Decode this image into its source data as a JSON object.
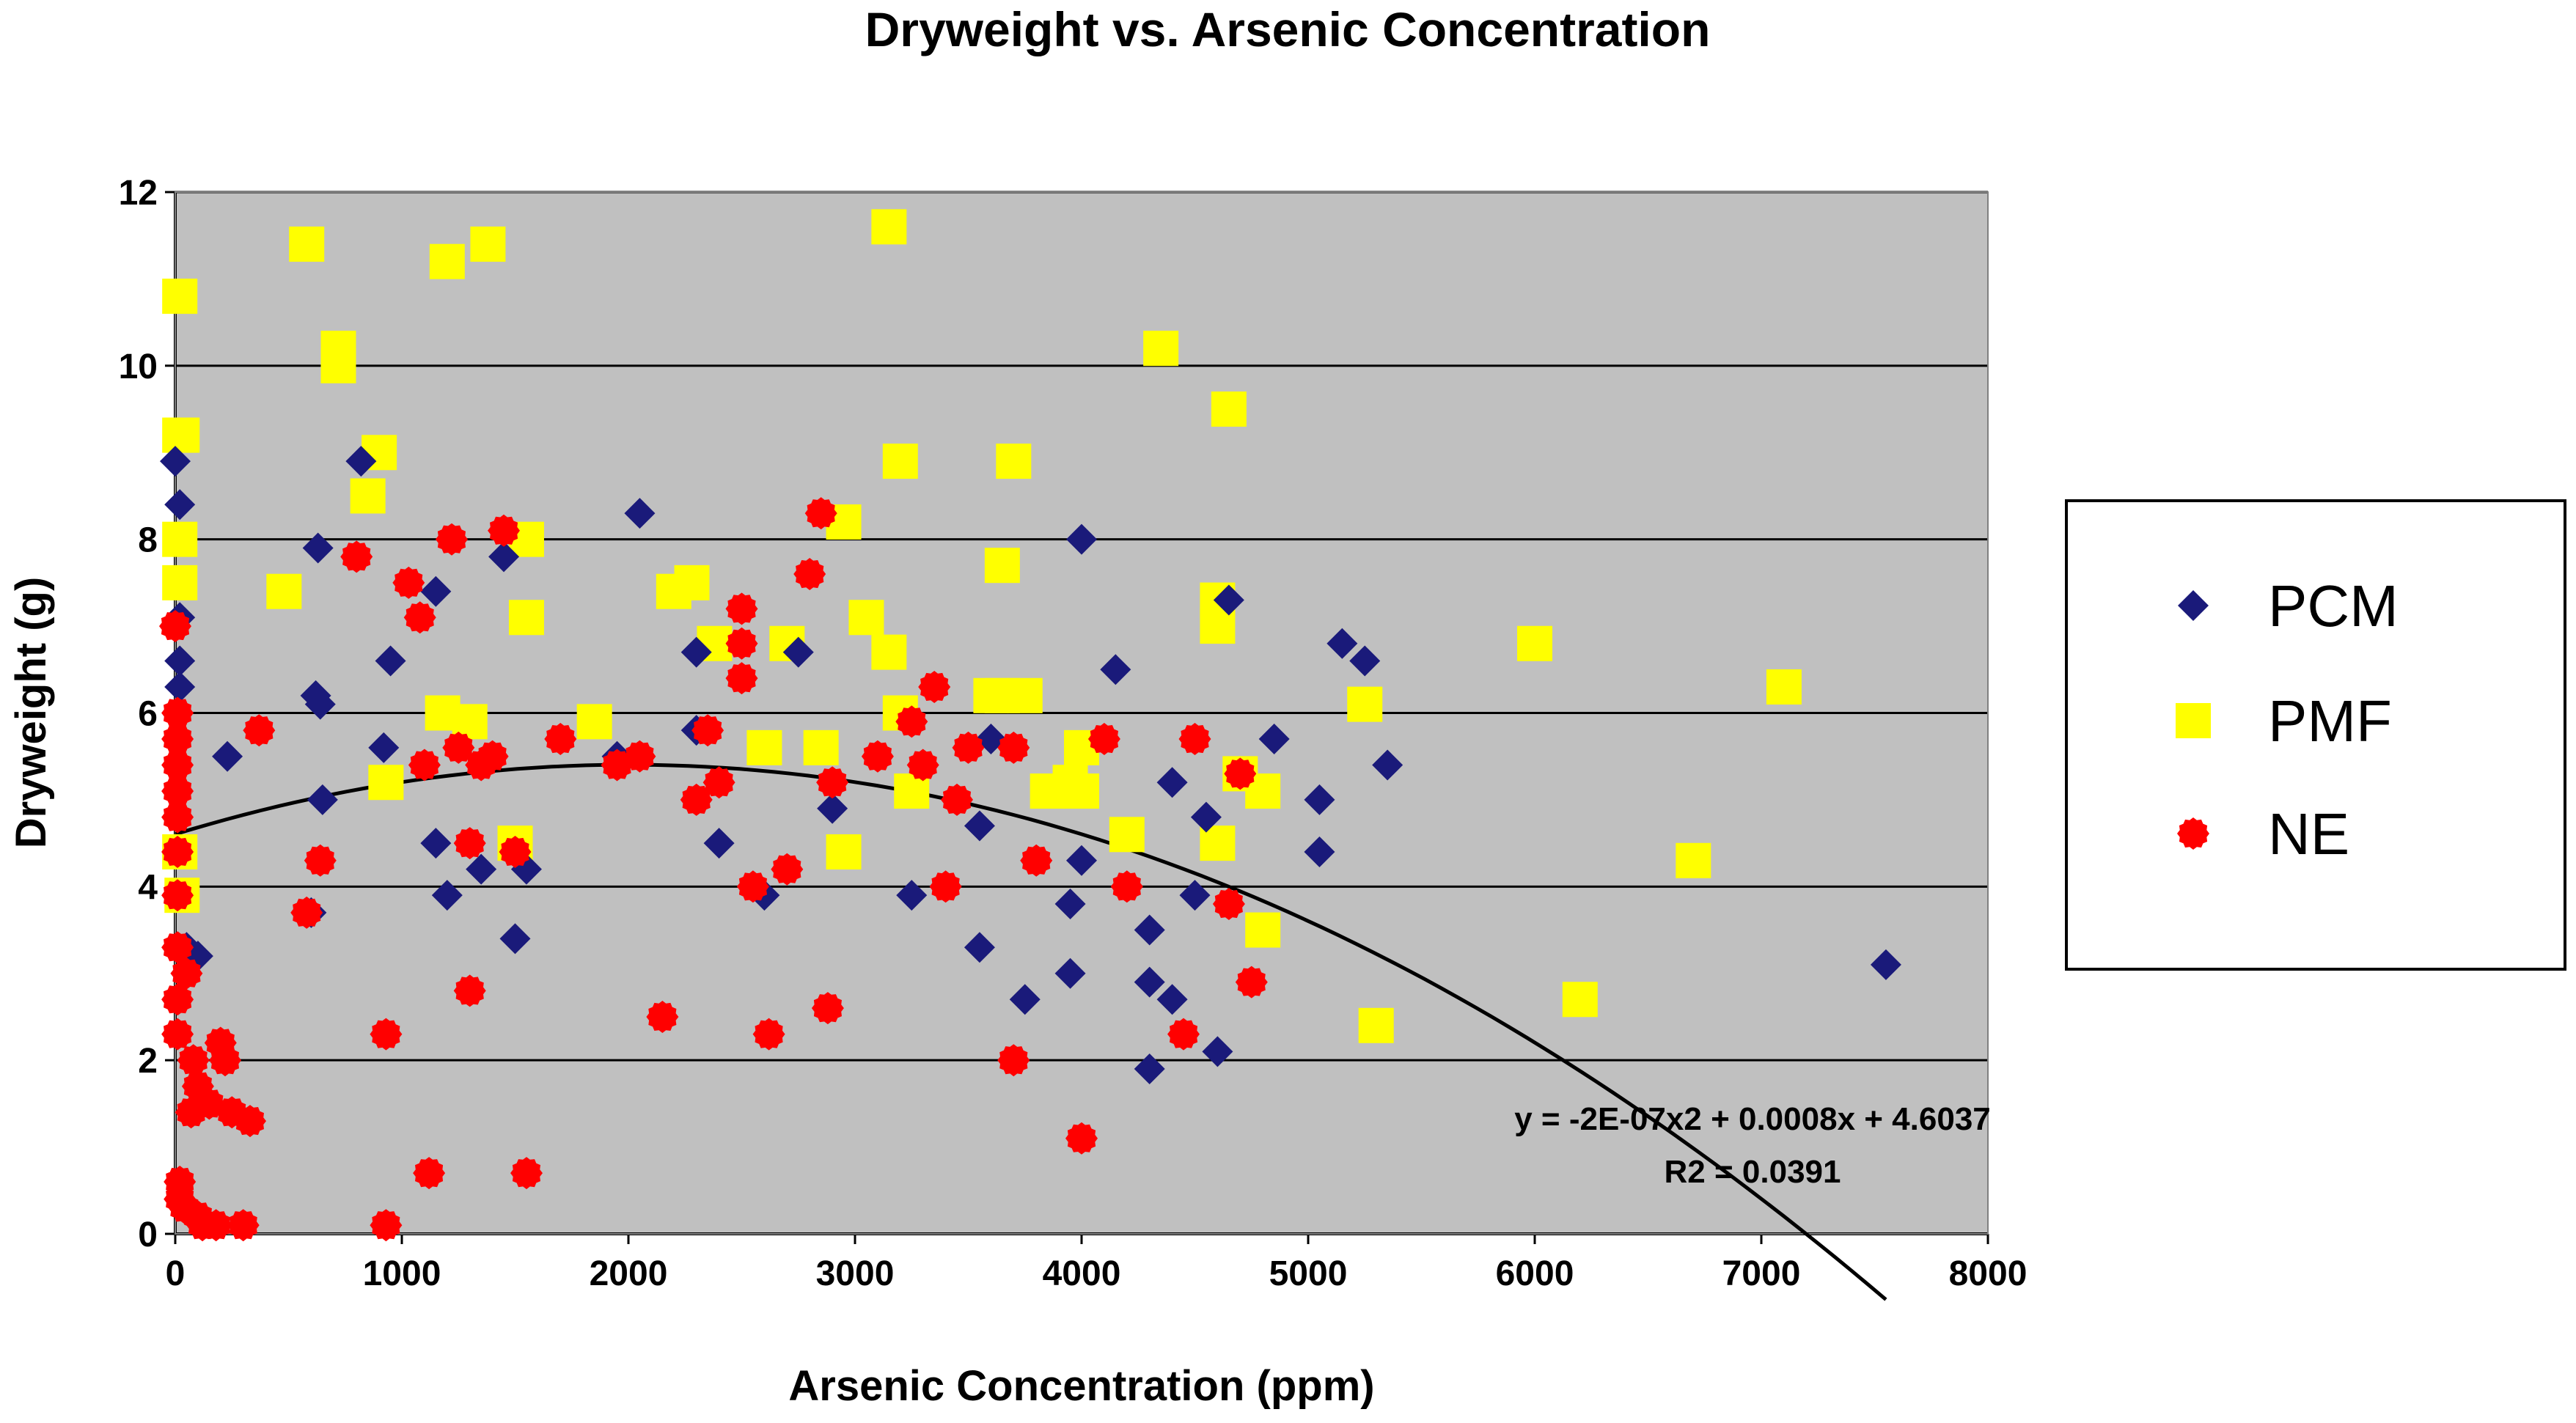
{
  "chart_data": {
    "type": "scatter",
    "title": "Dryweight vs. Arsenic Concentration",
    "xlabel": "Arsenic Concentration (ppm)",
    "ylabel": "Dryweight (g)",
    "xlim": [
      0,
      8000
    ],
    "ylim": [
      0,
      12
    ],
    "xticks": [
      0,
      1000,
      2000,
      3000,
      4000,
      5000,
      6000,
      7000,
      8000
    ],
    "yticks": [
      0,
      2,
      4,
      6,
      8,
      10,
      12
    ],
    "grid": true,
    "legend_position": "right",
    "plot_background": "#c0c0c0",
    "trendline": {
      "type": "polynomial",
      "coefficients": [
        -2e-07,
        0.0008,
        4.6037
      ],
      "x_range": [
        0,
        7550
      ],
      "color": "#000000",
      "equation": "y = -2E-07x2 + 0.0008x + 4.6037",
      "r2": "R2 = 0.0391"
    },
    "series": [
      {
        "name": "PCM",
        "marker": "diamond",
        "color": "#1a1a7a",
        "points": [
          [
            0,
            8.9
          ],
          [
            20,
            8.4
          ],
          [
            20,
            7.1
          ],
          [
            20,
            6.6
          ],
          [
            20,
            6.3
          ],
          [
            50,
            3.3
          ],
          [
            100,
            3.2
          ],
          [
            230,
            5.5
          ],
          [
            620,
            6.2
          ],
          [
            640,
            6.1
          ],
          [
            630,
            7.9
          ],
          [
            650,
            5.0
          ],
          [
            640,
            4.3
          ],
          [
            600,
            3.7
          ],
          [
            820,
            8.9
          ],
          [
            950,
            6.6
          ],
          [
            920,
            5.6
          ],
          [
            1150,
            7.4
          ],
          [
            1150,
            4.5
          ],
          [
            1200,
            3.9
          ],
          [
            1350,
            4.2
          ],
          [
            1450,
            7.8
          ],
          [
            1550,
            4.2
          ],
          [
            1500,
            3.4
          ],
          [
            1950,
            5.5
          ],
          [
            2050,
            8.3
          ],
          [
            2300,
            6.7
          ],
          [
            2300,
            5.8
          ],
          [
            2400,
            4.5
          ],
          [
            2600,
            3.9
          ],
          [
            2750,
            6.7
          ],
          [
            2900,
            4.9
          ],
          [
            3250,
            3.9
          ],
          [
            3400,
            4.0
          ],
          [
            3550,
            3.3
          ],
          [
            3550,
            4.7
          ],
          [
            3600,
            5.7
          ],
          [
            3750,
            2.7
          ],
          [
            3950,
            3.8
          ],
          [
            3950,
            3.0
          ],
          [
            4000,
            8.0
          ],
          [
            4000,
            4.3
          ],
          [
            4150,
            6.5
          ],
          [
            4300,
            3.5
          ],
          [
            4300,
            2.9
          ],
          [
            4300,
            1.9
          ],
          [
            4400,
            2.7
          ],
          [
            4400,
            5.2
          ],
          [
            4500,
            3.9
          ],
          [
            4550,
            4.8
          ],
          [
            4600,
            2.1
          ],
          [
            4650,
            7.3
          ],
          [
            4850,
            5.7
          ],
          [
            5050,
            5.0
          ],
          [
            5050,
            4.4
          ],
          [
            5150,
            6.8
          ],
          [
            5250,
            6.6
          ],
          [
            5350,
            5.4
          ],
          [
            7550,
            3.1
          ]
        ]
      },
      {
        "name": "PMF",
        "marker": "square",
        "color": "#ffff00",
        "points": [
          [
            20,
            10.8
          ],
          [
            20,
            9.2
          ],
          [
            30,
            9.2
          ],
          [
            20,
            8.0
          ],
          [
            20,
            7.5
          ],
          [
            20,
            4.4
          ],
          [
            30,
            3.9
          ],
          [
            480,
            7.4
          ],
          [
            580,
            11.4
          ],
          [
            720,
            10.2
          ],
          [
            720,
            10.0
          ],
          [
            850,
            8.5
          ],
          [
            900,
            9.0
          ],
          [
            930,
            5.2
          ],
          [
            1180,
            6.0
          ],
          [
            1200,
            11.2
          ],
          [
            1300,
            5.9
          ],
          [
            1380,
            11.4
          ],
          [
            1500,
            4.5
          ],
          [
            1550,
            8.0
          ],
          [
            1550,
            7.1
          ],
          [
            1850,
            5.9
          ],
          [
            2200,
            7.4
          ],
          [
            2280,
            7.5
          ],
          [
            2380,
            6.8
          ],
          [
            2600,
            5.6
          ],
          [
            2700,
            6.8
          ],
          [
            2850,
            5.6
          ],
          [
            2950,
            8.2
          ],
          [
            2950,
            4.4
          ],
          [
            3050,
            7.1
          ],
          [
            3150,
            11.6
          ],
          [
            3150,
            6.7
          ],
          [
            3200,
            8.9
          ],
          [
            3200,
            6.0
          ],
          [
            3250,
            5.1
          ],
          [
            3600,
            6.2
          ],
          [
            3650,
            7.7
          ],
          [
            3650,
            6.2
          ],
          [
            3700,
            8.9
          ],
          [
            3750,
            6.2
          ],
          [
            3850,
            5.1
          ],
          [
            3950,
            5.2
          ],
          [
            4000,
            5.1
          ],
          [
            4000,
            5.6
          ],
          [
            4200,
            4.6
          ],
          [
            4350,
            10.2
          ],
          [
            4600,
            7.3
          ],
          [
            4600,
            7.0
          ],
          [
            4600,
            4.5
          ],
          [
            4650,
            9.5
          ],
          [
            4700,
            5.3
          ],
          [
            4800,
            5.1
          ],
          [
            4800,
            3.5
          ],
          [
            5250,
            6.1
          ],
          [
            5300,
            2.4
          ],
          [
            6000,
            6.8
          ],
          [
            6200,
            2.7
          ],
          [
            6700,
            4.3
          ],
          [
            7100,
            6.3
          ]
        ]
      },
      {
        "name": "NE",
        "marker": "circle",
        "color": "#ff0000",
        "points": [
          [
            0,
            7.0
          ],
          [
            10,
            6.0
          ],
          [
            10,
            5.7
          ],
          [
            10,
            5.4
          ],
          [
            10,
            5.1
          ],
          [
            10,
            4.8
          ],
          [
            10,
            4.4
          ],
          [
            10,
            3.9
          ],
          [
            10,
            3.3
          ],
          [
            10,
            2.7
          ],
          [
            10,
            2.3
          ],
          [
            20,
            0.6
          ],
          [
            20,
            0.4
          ],
          [
            40,
            0.3
          ],
          [
            50,
            3.0
          ],
          [
            70,
            1.4
          ],
          [
            80,
            2.0
          ],
          [
            100,
            0.2
          ],
          [
            100,
            1.7
          ],
          [
            120,
            0.1
          ],
          [
            150,
            1.5
          ],
          [
            180,
            0.1
          ],
          [
            200,
            2.2
          ],
          [
            220,
            2.0
          ],
          [
            250,
            1.4
          ],
          [
            300,
            0.1
          ],
          [
            330,
            1.3
          ],
          [
            370,
            5.8
          ],
          [
            580,
            3.7
          ],
          [
            640,
            4.3
          ],
          [
            800,
            7.8
          ],
          [
            930,
            2.3
          ],
          [
            930,
            0.1
          ],
          [
            1030,
            7.5
          ],
          [
            1080,
            7.1
          ],
          [
            1100,
            5.4
          ],
          [
            1120,
            0.7
          ],
          [
            1220,
            8.0
          ],
          [
            1250,
            5.6
          ],
          [
            1300,
            4.5
          ],
          [
            1300,
            2.8
          ],
          [
            1350,
            5.4
          ],
          [
            1400,
            5.5
          ],
          [
            1450,
            8.1
          ],
          [
            1500,
            4.4
          ],
          [
            1550,
            0.7
          ],
          [
            1700,
            5.7
          ],
          [
            1950,
            5.4
          ],
          [
            2050,
            5.5
          ],
          [
            2150,
            2.5
          ],
          [
            2300,
            5.0
          ],
          [
            2350,
            5.8
          ],
          [
            2400,
            5.2
          ],
          [
            2500,
            7.2
          ],
          [
            2500,
            6.8
          ],
          [
            2500,
            6.4
          ],
          [
            2550,
            4.0
          ],
          [
            2620,
            2.3
          ],
          [
            2700,
            4.2
          ],
          [
            2800,
            7.6
          ],
          [
            2850,
            8.3
          ],
          [
            2880,
            2.6
          ],
          [
            2900,
            5.2
          ],
          [
            3100,
            5.5
          ],
          [
            3250,
            5.9
          ],
          [
            3300,
            5.4
          ],
          [
            3350,
            6.3
          ],
          [
            3400,
            4.0
          ],
          [
            3450,
            5.0
          ],
          [
            3500,
            5.6
          ],
          [
            3700,
            2.0
          ],
          [
            3700,
            5.6
          ],
          [
            3800,
            4.3
          ],
          [
            4000,
            1.1
          ],
          [
            4100,
            5.7
          ],
          [
            4200,
            4.0
          ],
          [
            4450,
            2.3
          ],
          [
            4500,
            5.7
          ],
          [
            4650,
            3.8
          ],
          [
            4700,
            5.3
          ],
          [
            4750,
            2.9
          ]
        ]
      }
    ]
  }
}
